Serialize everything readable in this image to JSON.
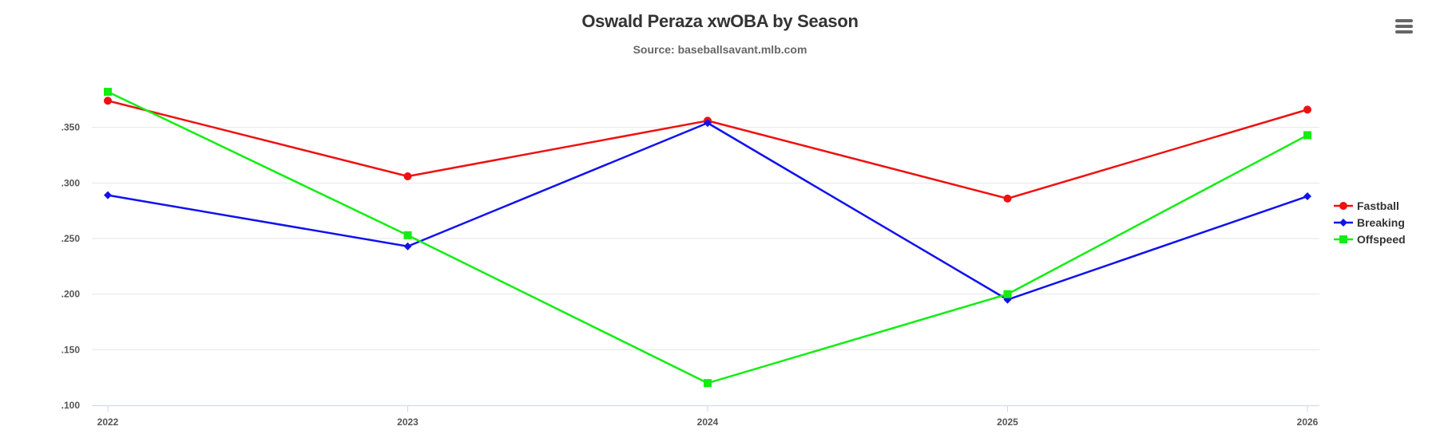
{
  "chart_data": {
    "type": "line",
    "title": "Oswald Peraza xwOBA by Season",
    "subtitle": "Source: baseballsavant.mlb.com",
    "xlabel": "",
    "ylabel": "",
    "categories": [
      "2022",
      "2023",
      "2024",
      "2025",
      "2026"
    ],
    "ylim": [
      0.1,
      0.4
    ],
    "yticks": [
      0.1,
      0.15,
      0.2,
      0.25,
      0.3,
      0.35
    ],
    "ytick_labels": [
      ".100",
      ".150",
      ".200",
      ".250",
      ".300",
      ".350"
    ],
    "grid": true,
    "legend_position": "right",
    "series": [
      {
        "name": "Fastball",
        "color": "#ee1111",
        "marker": "circle",
        "values": [
          0.374,
          0.306,
          0.356,
          0.286,
          0.366
        ]
      },
      {
        "name": "Breaking",
        "color": "#1111ee",
        "marker": "diamond",
        "values": [
          0.289,
          0.243,
          0.354,
          0.195,
          0.288
        ]
      },
      {
        "name": "Offspeed",
        "color": "#11ee11",
        "marker": "square",
        "values": [
          0.382,
          0.253,
          0.12,
          0.2,
          0.343
        ]
      }
    ]
  },
  "menu_icon": "hamburger-menu-icon"
}
